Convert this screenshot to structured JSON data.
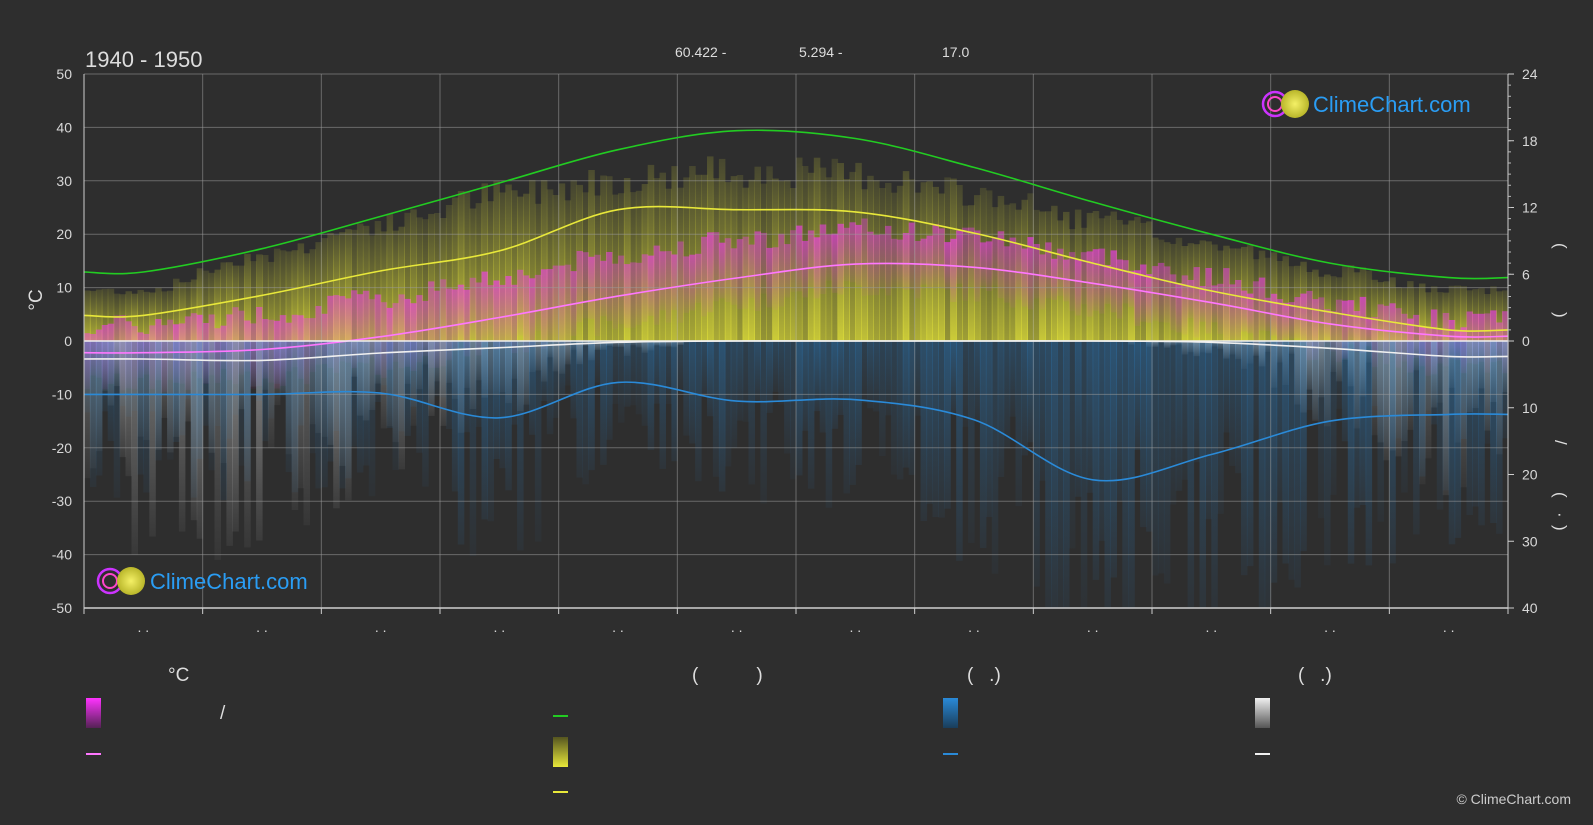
{
  "header": {
    "period": "1940 - 1950",
    "coords": [
      "60.422 -",
      "5.294 -",
      "17.0"
    ]
  },
  "branding": {
    "logo_text": "ClimeChart.com",
    "copyright": "© ClimeChart.com"
  },
  "colors": {
    "background": "#2e2e2e",
    "daylight": "#22cc22",
    "sunshine": "#e8e83a",
    "temp_mean": "#ff77ff",
    "temp_range": "#ff33ff",
    "precip": "#2a8ad8",
    "snow": "#f0f0f0",
    "brand": "#2a9df4"
  },
  "chart_data": {
    "type": "area",
    "months_placeholder": [
      ". .",
      ". .",
      ". .",
      ". .",
      ". .",
      ". .",
      ". .",
      ". .",
      ". .",
      ". .",
      ". .",
      ". ."
    ],
    "x": [
      1,
      2,
      3,
      4,
      5,
      6,
      7,
      8,
      9,
      10,
      11,
      12
    ],
    "left_axis": {
      "label": "°C",
      "ylim": [
        -50,
        50
      ],
      "ticks": [
        50,
        40,
        30,
        20,
        10,
        0,
        -10,
        -20,
        -30,
        -40,
        -50
      ]
    },
    "right_axis_top": {
      "ylim": [
        0,
        24
      ],
      "ticks": [
        24,
        18,
        12,
        6,
        0
      ],
      "label_glyphs": [
        "(",
        ")"
      ]
    },
    "right_axis_bottom": {
      "ylim": [
        0,
        40
      ],
      "ticks": [
        0,
        10,
        20,
        30,
        40
      ],
      "label_glyphs": [
        "/",
        "(",
        "·",
        ")"
      ]
    },
    "grid": true,
    "series": [
      {
        "key": "daylight",
        "axis": "right_top",
        "values": [
          6.2,
          8.3,
          11.2,
          14.2,
          17.2,
          18.9,
          18.2,
          15.6,
          12.5,
          9.6,
          7.0,
          5.7
        ]
      },
      {
        "key": "sunshine_mean",
        "axis": "right_top",
        "values": [
          2.3,
          4.1,
          6.3,
          8.1,
          11.8,
          11.8,
          11.6,
          9.7,
          7.0,
          4.5,
          2.6,
          1.0
        ]
      },
      {
        "key": "sunshine_max",
        "axis": "right_top",
        "values": [
          5.0,
          8.5,
          11.5,
          14.5,
          16.0,
          16.8,
          16.5,
          14.5,
          12.0,
          9.5,
          7.0,
          5.0
        ]
      },
      {
        "key": "temp_mean",
        "axis": "left",
        "values": [
          -2.2,
          -1.6,
          0.8,
          4.4,
          8.4,
          11.8,
          14.4,
          13.8,
          10.8,
          7.2,
          3.2,
          0.9
        ]
      },
      {
        "key": "temp_max",
        "axis": "left",
        "values": [
          3,
          5,
          8,
          12,
          16,
          19,
          21,
          20,
          16,
          12,
          7,
          4
        ]
      },
      {
        "key": "temp_min",
        "axis": "left",
        "values": [
          -8,
          -7,
          -5,
          -1,
          3,
          7,
          10,
          9,
          6,
          2,
          -2,
          -5
        ]
      },
      {
        "key": "snow",
        "axis": "right_bottom",
        "values": [
          2.7,
          2.9,
          1.8,
          1.0,
          0.2,
          0.0,
          0.0,
          0.0,
          0.0,
          0.2,
          1.1,
          2.3
        ]
      },
      {
        "key": "precip",
        "axis": "right_bottom",
        "values": [
          8.0,
          8.0,
          7.8,
          11.5,
          6.2,
          9.0,
          8.8,
          11.8,
          20.8,
          17.0,
          12.0,
          11.0
        ]
      }
    ]
  },
  "legend": {
    "col1_head": "°C",
    "col1_row1_sep": "/",
    "col2_head": "(           )",
    "col3_head": "(   .)",
    "col4_head": "(   .)"
  }
}
